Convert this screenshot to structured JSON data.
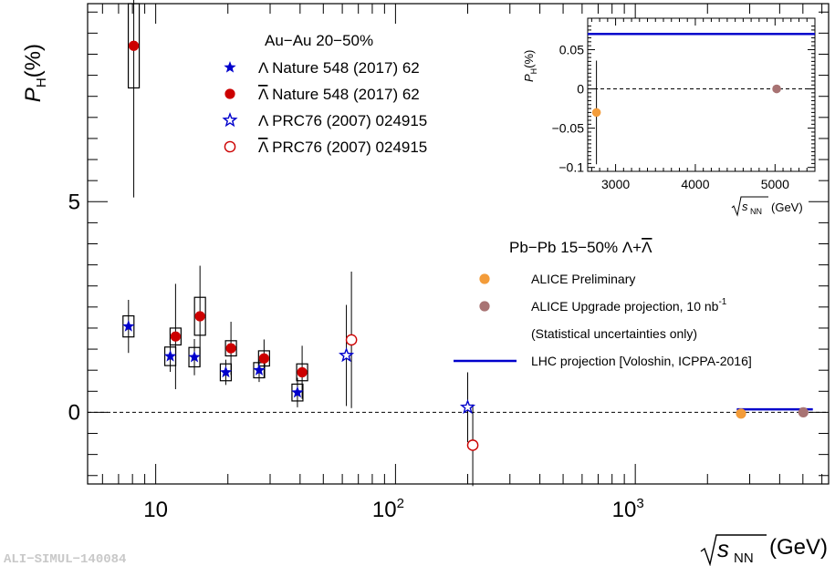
{
  "chart_data": [
    {
      "type": "scatter",
      "x_scale": "log",
      "xlim": [
        5.2,
        6400
      ],
      "ylim": [
        -1.7,
        9.7
      ],
      "xlabel": "(GeV)",
      "xlabel_symbol": "s",
      "xlabel_sub": "NN",
      "ylabel": "P",
      "ylabel_sub": "H",
      "ylabel_unit": "(%)",
      "x_ticks": [
        10,
        100,
        1000
      ],
      "x_tick_labels": [
        {
          "base": "10",
          "exp": ""
        },
        {
          "base": "10",
          "exp": "2"
        },
        {
          "base": "10",
          "exp": "3"
        }
      ],
      "y_ticks": [
        0,
        5
      ],
      "y_tick_labels": [
        "0",
        "5"
      ],
      "zero_line": true,
      "watermark": "ALI−SIMUL−140084",
      "legend_top": {
        "title": "Au−Au 20−50%",
        "entries": [
          {
            "label": "Λ Nature 548 (2017) 62",
            "overline": false,
            "tail": " Nature 548 (2017) 62",
            "marker": "filled-star",
            "color": "#0000cc"
          },
          {
            "label": "Λ̅ Nature 548 (2017) 62",
            "overline": true,
            "tail": " Nature 548 (2017) 62",
            "marker": "filled-circle",
            "color": "#cc0000"
          },
          {
            "label": "Λ PRC76 (2007) 024915",
            "overline": false,
            "tail": " PRC76 (2007) 024915",
            "marker": "open-star",
            "color": "#0000cc"
          },
          {
            "label": "Λ̅ PRC76 (2007) 024915",
            "overline": true,
            "tail": " PRC76 (2007) 024915",
            "marker": "open-circle",
            "color": "#cc0000"
          }
        ]
      },
      "legend_bottom": {
        "title": "Pb−Pb 15−50% Λ+Λ̅",
        "title_prefix": "Pb−Pb 15−50% ",
        "entries": [
          {
            "label": "ALICE Preliminary",
            "marker": "filled-circle",
            "color": "#f39c3a"
          },
          {
            "label": "ALICE Upgrade projection, 10 nb",
            "sup": "-1",
            "marker": "filled-circle",
            "color": "#a87373"
          },
          {
            "label": "(Statistical uncertainties only)",
            "marker": "none"
          },
          {
            "label": "LHC projection [Voloshin, ICPPA-2016]",
            "marker": "line",
            "color": "#0000cc"
          }
        ]
      },
      "series": [
        {
          "name": "Λ Nature 548 (2017) 62",
          "marker": "filled-star",
          "color": "#0000cc",
          "points": [
            {
              "x": 7.7,
              "y": 2.04,
              "err": 0.63,
              "syst": 0.25
            },
            {
              "x": 11.5,
              "y": 1.33,
              "err": 0.37,
              "syst": 0.22
            },
            {
              "x": 14.5,
              "y": 1.31,
              "err": 0.43,
              "syst": 0.23
            },
            {
              "x": 19.6,
              "y": 0.95,
              "err": 0.3,
              "syst": 0.2
            },
            {
              "x": 27.0,
              "y": 1.0,
              "err": 0.28,
              "syst": 0.18
            },
            {
              "x": 39.0,
              "y": 0.47,
              "err": 0.35,
              "syst": 0.2
            }
          ]
        },
        {
          "name": "Λ̅ Nature 548 (2017) 62",
          "marker": "filled-circle",
          "color": "#cc0000",
          "points": [
            {
              "x": 8.1,
              "y": 8.7,
              "err": 3.6,
              "syst": 1.0
            },
            {
              "x": 12.1,
              "y": 1.8,
              "err": 1.25,
              "syst": 0.2
            },
            {
              "x": 15.3,
              "y": 2.28,
              "err": 1.2,
              "syst": 0.45
            },
            {
              "x": 20.6,
              "y": 1.52,
              "err": 0.63,
              "syst": 0.18
            },
            {
              "x": 28.3,
              "y": 1.28,
              "err": 0.45,
              "syst": 0.18
            },
            {
              "x": 40.8,
              "y": 0.95,
              "err": 0.63,
              "syst": 0.2
            }
          ]
        },
        {
          "name": "Λ PRC76 (2007) 024915",
          "marker": "open-star",
          "color": "#0000cc",
          "points": [
            {
              "x": 62.4,
              "y": 1.35,
              "err": 1.2
            },
            {
              "x": 200,
              "y": 0.12,
              "err": 0.83
            }
          ]
        },
        {
          "name": "Λ̅ PRC76 (2007) 024915",
          "marker": "open-circle",
          "color": "#cc0000",
          "points": [
            {
              "x": 65.5,
              "y": 1.72,
              "err": 1.62
            },
            {
              "x": 210,
              "y": -0.78,
              "err": 0.97
            }
          ]
        },
        {
          "name": "ALICE Preliminary",
          "marker": "filled-circle",
          "color": "#f39c3a",
          "points": [
            {
              "x": 2760,
              "y": -0.03,
              "err": 0.066
            }
          ]
        },
        {
          "name": "ALICE Upgrade projection, 10 nb-1",
          "marker": "filled-circle",
          "color": "#a87373",
          "points": [
            {
              "x": 5020,
              "y": 0.0,
              "err": 0.003
            }
          ]
        },
        {
          "name": "LHC projection [Voloshin, ICPPA-2016]",
          "marker": "line",
          "color": "#0000cc",
          "points": [
            {
              "x": 2650,
              "y": 0.07
            },
            {
              "x": 5500,
              "y": 0.07
            }
          ]
        }
      ]
    },
    {
      "type": "scatter",
      "inset": true,
      "x_scale": "linear",
      "xlim": [
        2650,
        5500
      ],
      "ylim": [
        -0.105,
        0.09
      ],
      "xlabel": "(GeV)",
      "xlabel_symbol": "s",
      "xlabel_sub": "NN",
      "ylabel": "P",
      "ylabel_sub": "H",
      "ylabel_unit": "(%)",
      "x_ticks": [
        3000,
        4000,
        5000
      ],
      "x_tick_labels": [
        "3000",
        "4000",
        "5000"
      ],
      "y_ticks": [
        -0.1,
        -0.05,
        0,
        0.05
      ],
      "y_tick_labels": [
        "−0.1",
        "−0.05",
        "0",
        "0.05"
      ],
      "zero_line": true,
      "series": [
        {
          "name": "ALICE Preliminary",
          "marker": "filled-circle",
          "color": "#f39c3a",
          "points": [
            {
              "x": 2760,
              "y": -0.03,
              "err": 0.066
            }
          ]
        },
        {
          "name": "ALICE Upgrade projection, 10 nb-1",
          "marker": "filled-circle",
          "color": "#a87373",
          "points": [
            {
              "x": 5020,
              "y": 0.0,
              "err": 0.003
            }
          ]
        },
        {
          "name": "LHC projection [Voloshin, ICPPA-2016]",
          "marker": "line",
          "color": "#0000cc",
          "points": [
            {
              "x": 2650,
              "y": 0.07
            },
            {
              "x": 5500,
              "y": 0.07
            }
          ]
        }
      ]
    }
  ]
}
